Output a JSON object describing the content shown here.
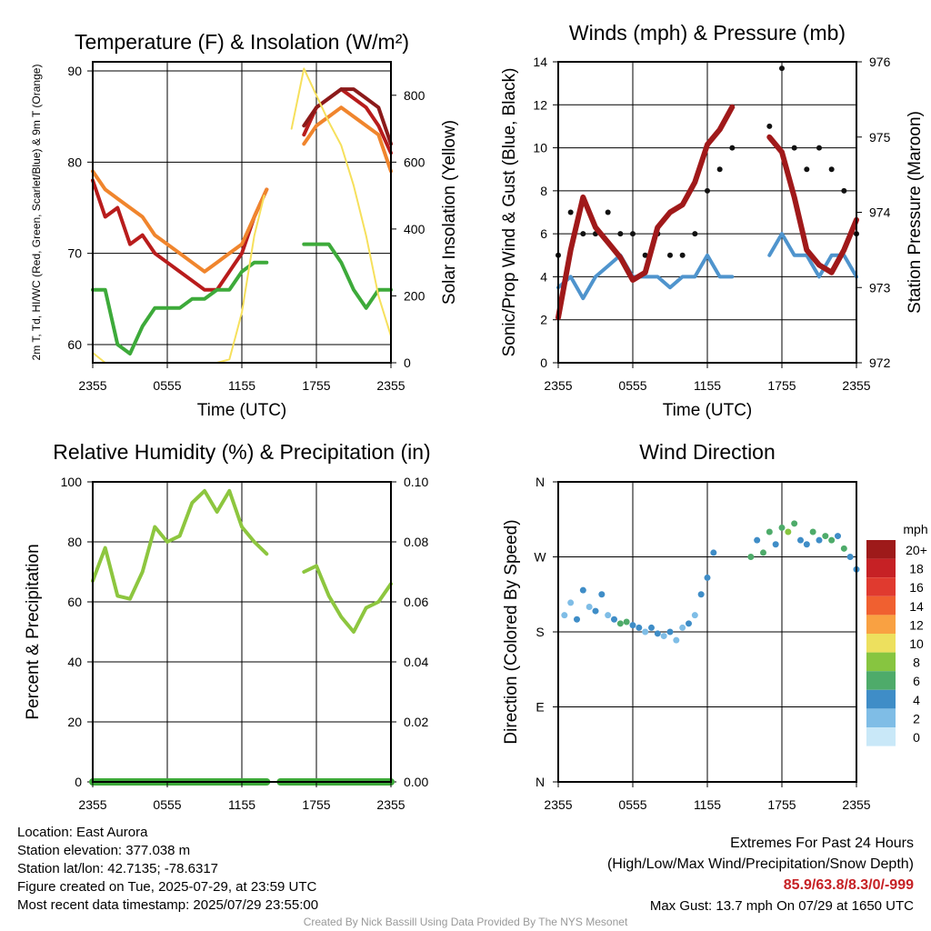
{
  "chart_data": [
    {
      "type": "line",
      "title": "Temperature (F) & Insolation (W/m²)",
      "xlabel": "Time (UTC)",
      "ylabel_left": "2m T, Td, HI/WC (Red, Green, Scarlet/Blue) & 9m T (Orange)",
      "ylabel_right": "Solar Insolation (Yellow)",
      "x_ticks": [
        "2355",
        "0555",
        "1155",
        "1755",
        "2355"
      ],
      "ylim_left": [
        58,
        91
      ],
      "yticks_left": [
        60,
        70,
        80,
        90
      ],
      "ylim_right": [
        0,
        900
      ],
      "yticks_right": [
        0,
        200,
        400,
        600,
        800
      ],
      "grid": true,
      "series": [
        {
          "name": "2m T",
          "color": "#b81c1c",
          "axis": "left",
          "x": [
            0,
            1,
            2,
            3,
            4,
            5,
            6,
            7,
            8,
            9,
            10,
            11,
            12,
            13,
            14,
            15,
            16,
            17,
            18,
            19,
            20,
            21,
            22,
            23,
            24
          ],
          "values": [
            78,
            74,
            75,
            71,
            72,
            70,
            69,
            68,
            67,
            66,
            66,
            68,
            70,
            74,
            77,
            null,
            null,
            83,
            86,
            87,
            88,
            87,
            86,
            84,
            81
          ]
        },
        {
          "name": "2m Td",
          "color": "#3daa3a",
          "axis": "left",
          "x": [
            0,
            1,
            2,
            3,
            4,
            5,
            6,
            7,
            8,
            9,
            10,
            11,
            12,
            13,
            14,
            15,
            16,
            17,
            18,
            19,
            20,
            21,
            22,
            23,
            24
          ],
          "values": [
            66,
            66,
            60,
            59,
            62,
            64,
            64,
            64,
            65,
            65,
            66,
            66,
            68,
            69,
            69,
            null,
            null,
            71,
            71,
            71,
            69,
            66,
            64,
            66,
            66
          ]
        },
        {
          "name": "HI/WC",
          "color": "#8b1a1a",
          "axis": "left",
          "x": [
            17,
            18,
            19,
            20,
            21,
            22,
            23,
            24
          ],
          "values": [
            84,
            86,
            87,
            88,
            88,
            87,
            86,
            82
          ]
        },
        {
          "name": "9m T",
          "color": "#f0852d",
          "axis": "left",
          "x": [
            0,
            1,
            2,
            3,
            4,
            5,
            6,
            7,
            8,
            9,
            10,
            11,
            12,
            13,
            14,
            15,
            16,
            17,
            18,
            19,
            20,
            21,
            22,
            23,
            24
          ],
          "values": [
            79,
            77,
            76,
            75,
            74,
            72,
            71,
            70,
            69,
            68,
            69,
            70,
            71,
            74,
            77,
            null,
            null,
            82,
            84,
            85,
            86,
            85,
            84,
            83,
            79
          ]
        },
        {
          "name": "Solar Insolation",
          "color": "#f6e05c",
          "axis": "right",
          "x": [
            0,
            1,
            2,
            3,
            4,
            5,
            6,
            7,
            8,
            9,
            10,
            11,
            11.5,
            12,
            13,
            13.8,
            14,
            15,
            16,
            17,
            18,
            19,
            20,
            21,
            22,
            23,
            24
          ],
          "values": [
            30,
            0,
            0,
            0,
            0,
            0,
            0,
            0,
            0,
            0,
            0,
            10,
            80,
            150,
            380,
            500,
            null,
            null,
            700,
            880,
            800,
            720,
            650,
            530,
            380,
            200,
            80
          ]
        }
      ]
    },
    {
      "type": "line",
      "title": "Winds (mph) & Pressure (mb)",
      "xlabel": "Time (UTC)",
      "ylabel_left": "Sonic/Prop Wind & Gust (Blue, Black)",
      "ylabel_right": "Station Pressure (Maroon)",
      "x_ticks": [
        "2355",
        "0555",
        "1155",
        "1755",
        "2355"
      ],
      "ylim_left": [
        0,
        14
      ],
      "yticks_left": [
        0,
        2,
        4,
        6,
        8,
        10,
        12,
        14
      ],
      "ylim_right": [
        972,
        976
      ],
      "yticks_right": [
        972,
        973,
        974,
        975,
        976
      ],
      "grid": true,
      "series": [
        {
          "name": "Wind",
          "color": "#4f94cd",
          "axis": "left",
          "x": [
            0,
            1,
            2,
            3,
            4,
            5,
            6,
            7,
            8,
            9,
            10,
            11,
            12,
            13,
            14,
            15,
            16,
            17,
            18,
            19,
            20,
            21,
            22,
            23,
            24
          ],
          "values": [
            3.5,
            4,
            3,
            4,
            4.5,
            5,
            4,
            4,
            4,
            3.5,
            4,
            4,
            5,
            4,
            4,
            null,
            null,
            5,
            6,
            5,
            5,
            4,
            5,
            5,
            4
          ]
        },
        {
          "name": "Gust",
          "color": "#111111",
          "axis": "left",
          "x": [
            0,
            1,
            2,
            3,
            4,
            5,
            6,
            7,
            8,
            9,
            10,
            11,
            12,
            13,
            14,
            15,
            16,
            17,
            18,
            19,
            20,
            21,
            22,
            23,
            24
          ],
          "values": [
            5,
            7,
            6,
            6,
            7,
            6,
            6,
            5,
            6,
            5,
            5,
            6,
            8,
            9,
            10,
            null,
            null,
            11,
            13.7,
            10,
            9,
            10,
            9,
            8,
            6
          ]
        },
        {
          "name": "Station Pressure",
          "color": "#a0191a",
          "axis": "right",
          "x": [
            0,
            1,
            2,
            3,
            4,
            5,
            6,
            7,
            8,
            9,
            10,
            11,
            11.8,
            12,
            13,
            14,
            15,
            16,
            17,
            18,
            19,
            20,
            21,
            22,
            23,
            24
          ],
          "values": [
            972.6,
            973.5,
            974.2,
            973.8,
            973.6,
            973.4,
            973.1,
            973.2,
            973.8,
            974,
            974.1,
            974.4,
            974.8,
            974.9,
            975.1,
            975.4,
            null,
            null,
            975.0,
            974.8,
            974.2,
            973.5,
            973.3,
            973.2,
            973.5,
            973.9
          ]
        }
      ]
    },
    {
      "type": "line",
      "title": "Relative Humidity (%) & Precipitation (in)",
      "xlabel": "",
      "ylabel_left": "Percent & Precipitation",
      "x_ticks": [
        "2355",
        "0555",
        "1155",
        "1755",
        "2355"
      ],
      "ylim_left": [
        0,
        100
      ],
      "yticks_left": [
        0,
        20,
        40,
        60,
        80,
        100
      ],
      "ylim_right": [
        0,
        0.1
      ],
      "yticks_right": [
        "0.00",
        "0.02",
        "0.04",
        "0.06",
        "0.08",
        "0.10"
      ],
      "grid": true,
      "series": [
        {
          "name": "Relative Humidity",
          "color": "#8dc63f",
          "axis": "left",
          "x": [
            0,
            1,
            2,
            3,
            4,
            5,
            6,
            7,
            8,
            9,
            10,
            11,
            12,
            13,
            14,
            15,
            16,
            17,
            18,
            19,
            20,
            21,
            22,
            23,
            24
          ],
          "values": [
            67,
            78,
            62,
            61,
            70,
            85,
            80,
            82,
            93,
            97,
            90,
            97,
            85,
            80,
            76,
            null,
            null,
            70,
            72,
            62,
            55,
            50,
            58,
            60,
            66
          ]
        },
        {
          "name": "Precipitation",
          "color": "#3daa3a",
          "axis": "right",
          "x": [
            0,
            14,
            null,
            15.1,
            24
          ],
          "values": [
            0,
            0,
            null,
            0,
            0
          ]
        }
      ]
    },
    {
      "type": "scatter",
      "title": "Wind Direction",
      "xlabel": "",
      "ylabel_left": "Direction (Colored By Speed)",
      "x_ticks": [
        "2355",
        "0555",
        "1155",
        "1755",
        "2355"
      ],
      "y_ticks": [
        "N",
        "E",
        "S",
        "W",
        "N"
      ],
      "ylim_left": [
        0,
        360
      ],
      "grid": true,
      "points": [
        {
          "x": 0.5,
          "y": 200,
          "c": 2
        },
        {
          "x": 1,
          "y": 215,
          "c": 2
        },
        {
          "x": 1.5,
          "y": 195,
          "c": 4
        },
        {
          "x": 2,
          "y": 230,
          "c": 4
        },
        {
          "x": 2.5,
          "y": 210,
          "c": 2
        },
        {
          "x": 3,
          "y": 205,
          "c": 4
        },
        {
          "x": 3.5,
          "y": 225,
          "c": 4
        },
        {
          "x": 4,
          "y": 200,
          "c": 2
        },
        {
          "x": 4.5,
          "y": 195,
          "c": 4
        },
        {
          "x": 5,
          "y": 190,
          "c": 6
        },
        {
          "x": 5.5,
          "y": 192,
          "c": 6
        },
        {
          "x": 6,
          "y": 188,
          "c": 4
        },
        {
          "x": 6.5,
          "y": 185,
          "c": 4
        },
        {
          "x": 7,
          "y": 180,
          "c": 2
        },
        {
          "x": 7.5,
          "y": 185,
          "c": 4
        },
        {
          "x": 8,
          "y": 178,
          "c": 4
        },
        {
          "x": 8.5,
          "y": 175,
          "c": 2
        },
        {
          "x": 9,
          "y": 180,
          "c": 4
        },
        {
          "x": 9.5,
          "y": 170,
          "c": 2
        },
        {
          "x": 10,
          "y": 185,
          "c": 2
        },
        {
          "x": 10.5,
          "y": 190,
          "c": 4
        },
        {
          "x": 11,
          "y": 200,
          "c": 2
        },
        {
          "x": 11.5,
          "y": 225,
          "c": 4
        },
        {
          "x": 12,
          "y": 245,
          "c": 4
        },
        {
          "x": 12.5,
          "y": 275,
          "c": 4
        },
        {
          "x": 15.5,
          "y": 270,
          "c": 6
        },
        {
          "x": 16,
          "y": 290,
          "c": 4
        },
        {
          "x": 16.5,
          "y": 275,
          "c": 6
        },
        {
          "x": 17,
          "y": 300,
          "c": 6
        },
        {
          "x": 17.5,
          "y": 285,
          "c": 4
        },
        {
          "x": 18,
          "y": 305,
          "c": 6
        },
        {
          "x": 18.5,
          "y": 300,
          "c": 8
        },
        {
          "x": 19,
          "y": 310,
          "c": 6
        },
        {
          "x": 19.5,
          "y": 290,
          "c": 4
        },
        {
          "x": 20,
          "y": 285,
          "c": 4
        },
        {
          "x": 20.5,
          "y": 300,
          "c": 6
        },
        {
          "x": 21,
          "y": 290,
          "c": 4
        },
        {
          "x": 21.5,
          "y": 295,
          "c": 6
        },
        {
          "x": 22,
          "y": 290,
          "c": 6
        },
        {
          "x": 22.5,
          "y": 295,
          "c": 4
        },
        {
          "x": 23,
          "y": 280,
          "c": 6
        },
        {
          "x": 23.5,
          "y": 270,
          "c": 4
        },
        {
          "x": 24,
          "y": 255,
          "c": 4
        }
      ],
      "legend": {
        "title": "mph",
        "labels": [
          "20+",
          "18",
          "16",
          "14",
          "12",
          "10",
          "8",
          "6",
          "4",
          "2",
          "0"
        ],
        "colors": [
          "#9e1a1a",
          "#c62125",
          "#e03a2f",
          "#f06030",
          "#f9a142",
          "#ede05e",
          "#87c540",
          "#4eab6a",
          "#3f8dc7",
          "#7fbde6",
          "#c9e8f8"
        ]
      }
    }
  ],
  "footer": {
    "location": "Location: East Aurora",
    "elevation": "Station elevation: 377.038 m",
    "latlon": "Station lat/lon: 42.7135; -78.6317",
    "created": "Figure created on Tue, 2025-07-29, at 23:59 UTC",
    "recent": "Most recent data timestamp: 2025/07/29 23:55:00",
    "extremes_title": "Extremes For Past 24 Hours",
    "extremes_sub": "(High/Low/Max Wind/Precipitation/Snow Depth)",
    "extremes_values": "85.9/63.8/8.3/0/-999",
    "max_gust": "Max Gust: 13.7 mph On 07/29 at 1650 UTC",
    "credit": "Created By Nick Bassill Using Data Provided By The NYS Mesonet"
  },
  "colors": {
    "extremes": "#c62125",
    "credit": "#999999"
  }
}
